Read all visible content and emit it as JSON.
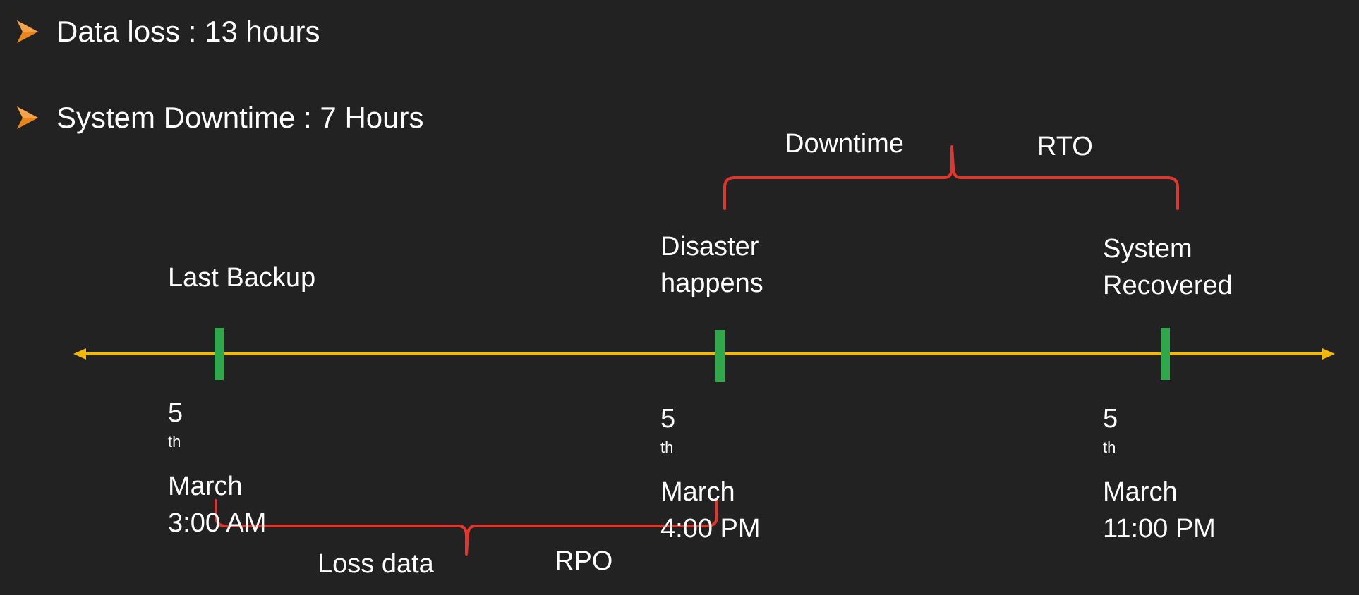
{
  "bullets": [
    {
      "text": "Data loss : 13 hours",
      "icon": "chevron-arrow-icon"
    },
    {
      "text": "System Downtime : 7 Hours",
      "icon": "chevron-arrow-icon"
    }
  ],
  "events": [
    {
      "title_lines": [
        "Last Backup"
      ],
      "day": "5",
      "suffix": "th",
      "month": "March",
      "time": "3:00 AM"
    },
    {
      "title_lines": [
        "Disaster",
        "happens"
      ],
      "day": "5",
      "suffix": "th",
      "month": "March",
      "time": "4:00 PM"
    },
    {
      "title_lines": [
        "System",
        "Recovered"
      ],
      "day": "5",
      "suffix": "th",
      "month": "March",
      "time": "11:00 PM"
    }
  ],
  "braces": {
    "upper": {
      "left_label": "Downtime",
      "right_label": "RTO"
    },
    "lower": {
      "left_label": "Loss data",
      "right_label": "RPO"
    }
  },
  "colors": {
    "background": "#222222",
    "timeline": "#f5b800",
    "tick": "#2ea84a",
    "brace": "#e0362b",
    "bullet_arrow": "#e8861a",
    "text": "#ffffff"
  }
}
